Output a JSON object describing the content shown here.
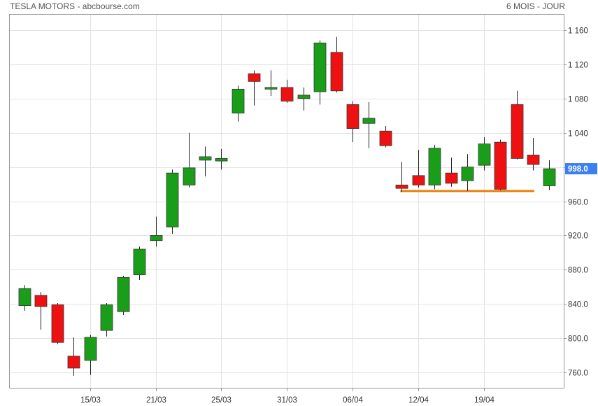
{
  "header": {
    "title": "TESLA MOTORS - abcbourse.com",
    "period": "6 MOIS - JOUR"
  },
  "chart_data": {
    "type": "candlestick",
    "y_ticks": [
      760,
      800,
      840,
      880,
      920,
      960,
      1000,
      1040,
      1080,
      1120,
      1160
    ],
    "y_tick_labels": [
      "760.0",
      "800.0",
      "840.0",
      "880.0",
      "920.0",
      "960.0",
      "1 000",
      "1 040",
      "1 080",
      "1 120",
      "1 160"
    ],
    "ylim": [
      742,
      1178
    ],
    "x_tick_labels": [
      "15/03",
      "21/03",
      "25/03",
      "31/03",
      "06/04",
      "12/04",
      "19/04"
    ],
    "x_tick_indices": [
      4,
      8,
      12,
      16,
      20,
      24,
      28
    ],
    "last_price_label": "998.0",
    "up_color": "#1a9e1a",
    "down_color": "#ee1111",
    "support_line": {
      "value": 972,
      "from_index": 23,
      "to_index": 31,
      "color": "#f07d0a"
    },
    "candles": [
      {
        "open": 838,
        "high": 862,
        "low": 832,
        "close": 858
      },
      {
        "open": 850,
        "high": 854,
        "low": 810,
        "close": 837
      },
      {
        "open": 839,
        "high": 841,
        "low": 793,
        "close": 795
      },
      {
        "open": 779,
        "high": 801,
        "low": 756,
        "close": 765
      },
      {
        "open": 774,
        "high": 804,
        "low": 757,
        "close": 801
      },
      {
        "open": 809,
        "high": 841,
        "low": 802,
        "close": 839
      },
      {
        "open": 831,
        "high": 873,
        "low": 827,
        "close": 871
      },
      {
        "open": 874,
        "high": 907,
        "low": 868,
        "close": 904
      },
      {
        "open": 914,
        "high": 942,
        "low": 907,
        "close": 920
      },
      {
        "open": 930,
        "high": 997,
        "low": 922,
        "close": 993
      },
      {
        "open": 979,
        "high": 1040,
        "low": 976,
        "close": 999
      },
      {
        "open": 1008,
        "high": 1024,
        "low": 989,
        "close": 1012
      },
      {
        "open": 1007,
        "high": 1021,
        "low": 997,
        "close": 1010
      },
      {
        "open": 1063,
        "high": 1095,
        "low": 1053,
        "close": 1091
      },
      {
        "open": 1109,
        "high": 1113,
        "low": 1072,
        "close": 1100
      },
      {
        "open": 1091,
        "high": 1113,
        "low": 1083,
        "close": 1093
      },
      {
        "open": 1093,
        "high": 1102,
        "low": 1075,
        "close": 1077
      },
      {
        "open": 1080,
        "high": 1093,
        "low": 1066,
        "close": 1084
      },
      {
        "open": 1088,
        "high": 1148,
        "low": 1073,
        "close": 1145
      },
      {
        "open": 1134,
        "high": 1152,
        "low": 1087,
        "close": 1089
      },
      {
        "open": 1073,
        "high": 1077,
        "low": 1029,
        "close": 1045
      },
      {
        "open": 1051,
        "high": 1076,
        "low": 1022,
        "close": 1057
      },
      {
        "open": 1042,
        "high": 1048,
        "low": 1023,
        "close": 1025
      },
      {
        "open": 979,
        "high": 1006,
        "low": 971,
        "close": 975
      },
      {
        "open": 990,
        "high": 1020,
        "low": 976,
        "close": 979
      },
      {
        "open": 979,
        "high": 1026,
        "low": 974,
        "close": 1022
      },
      {
        "open": 993,
        "high": 1011,
        "low": 977,
        "close": 981
      },
      {
        "open": 984,
        "high": 1015,
        "low": 972,
        "close": 1000
      },
      {
        "open": 1002,
        "high": 1035,
        "low": 996,
        "close": 1027
      },
      {
        "open": 1029,
        "high": 1032,
        "low": 973,
        "close": 974
      },
      {
        "open": 1073,
        "high": 1089,
        "low": 1009,
        "close": 1010
      },
      {
        "open": 1014,
        "high": 1034,
        "low": 996,
        "close": 1003
      },
      {
        "open": 978,
        "high": 1008,
        "low": 973,
        "close": 998
      }
    ]
  }
}
